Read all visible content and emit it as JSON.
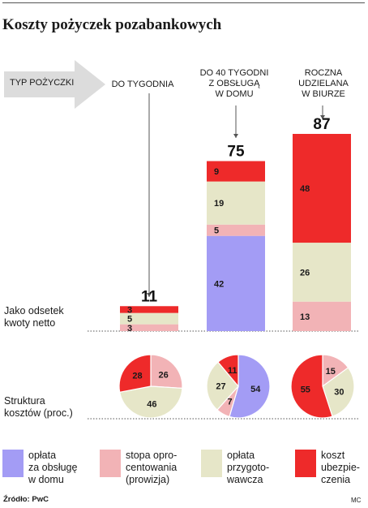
{
  "title": "Koszty pożyczek pozabankowych",
  "header_label": "TYP POŻYCZKI",
  "categories": [
    {
      "lines": [
        "DO TYGODNIA"
      ]
    },
    {
      "lines": [
        "DO 40 TYGODNI",
        "Z OBSŁUGĄ",
        "W DOMU"
      ]
    },
    {
      "lines": [
        "ROCZNA",
        "UDZIELANA",
        "W BIURZE"
      ]
    }
  ],
  "side_labels": {
    "bars": [
      "Jako odsetek",
      "kwoty netto"
    ],
    "pies": [
      "Struktura",
      "kosztów (proc.)"
    ]
  },
  "legend": [
    {
      "key": "service",
      "lines": [
        "opłata",
        "za obsługę",
        "w domu"
      ],
      "color": "#a39cf5"
    },
    {
      "key": "interest",
      "lines": [
        "stopa opro-",
        "centowania",
        "(prowizja)"
      ],
      "color": "#f2b3b6"
    },
    {
      "key": "prep",
      "lines": [
        "opłata",
        "przygoto-",
        "wawcza"
      ],
      "color": "#e6e6c8"
    },
    {
      "key": "insurance",
      "lines": [
        "koszt",
        "ubezpie-",
        "czenia"
      ],
      "color": "#ee2a2a"
    }
  ],
  "source": "Źródło: PwC",
  "credit": "MC",
  "chart_data": [
    {
      "type": "bar",
      "stacked": true,
      "categories": [
        "DO TYGODNIA",
        "DO 40 TYGODNI Z OBSŁUGĄ W DOMU",
        "ROCZNA UDZIELANA W BIURZE"
      ],
      "totals": [
        11,
        75,
        87
      ],
      "series": [
        {
          "key": "service",
          "name": "opłata za obsługę w domu",
          "values": [
            0,
            42,
            0
          ]
        },
        {
          "key": "interest",
          "name": "stopa oprocentowania (prowizja)",
          "values": [
            3,
            5,
            13
          ]
        },
        {
          "key": "prep",
          "name": "opłata przygotowawcza",
          "values": [
            5,
            19,
            26
          ]
        },
        {
          "key": "insurance",
          "name": "koszt ubezpieczenia",
          "values": [
            3,
            9,
            48
          ]
        }
      ],
      "colors": {
        "service": "#a39cf5",
        "interest": "#f2b3b6",
        "prep": "#e6e6c8",
        "insurance": "#ee2a2a"
      }
    },
    {
      "type": "pie",
      "categories": [
        "DO TYGODNIA",
        "DO 40 TYGODNI Z OBSŁUGĄ W DOMU",
        "ROCZNA UDZIELANA W BIURZE"
      ],
      "pies": [
        {
          "slices": [
            {
              "key": "interest",
              "value": 26
            },
            {
              "key": "prep",
              "value": 46
            },
            {
              "key": "insurance",
              "value": 28
            }
          ]
        },
        {
          "slices": [
            {
              "key": "service",
              "value": 54
            },
            {
              "key": "interest",
              "value": 7
            },
            {
              "key": "prep",
              "value": 27
            },
            {
              "key": "insurance",
              "value": 11
            }
          ]
        },
        {
          "slices": [
            {
              "key": "interest",
              "value": 15
            },
            {
              "key": "prep",
              "value": 30
            },
            {
              "key": "insurance",
              "value": 55
            }
          ]
        }
      ],
      "colors": {
        "service": "#a39cf5",
        "interest": "#f2b3b6",
        "prep": "#e6e6c8",
        "insurance": "#ee2a2a"
      }
    }
  ]
}
